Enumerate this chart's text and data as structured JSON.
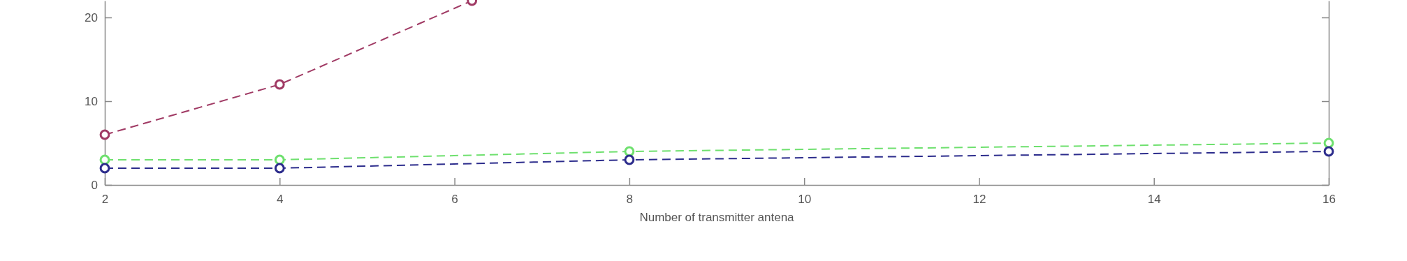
{
  "chart_data": {
    "type": "line",
    "xlabel": "Number of transmitter antena",
    "xlim": [
      2,
      16
    ],
    "xticks": [
      2,
      4,
      6,
      8,
      10,
      12,
      14,
      16
    ],
    "ylim": [
      0,
      22
    ],
    "yticks": [
      0,
      10,
      20
    ],
    "marker": "circle",
    "line_style": "dashed",
    "grid": false,
    "x": [
      2,
      4,
      8,
      16
    ],
    "series": [
      {
        "color": "#a03a64",
        "x": [
          2,
          4,
          6.2
        ],
        "values": [
          6,
          12,
          22
        ]
      },
      {
        "color": "#6ee06e",
        "values": [
          3,
          3,
          4,
          5
        ]
      },
      {
        "color": "#2c2c8c",
        "values": [
          2,
          2,
          3,
          4
        ]
      }
    ]
  }
}
